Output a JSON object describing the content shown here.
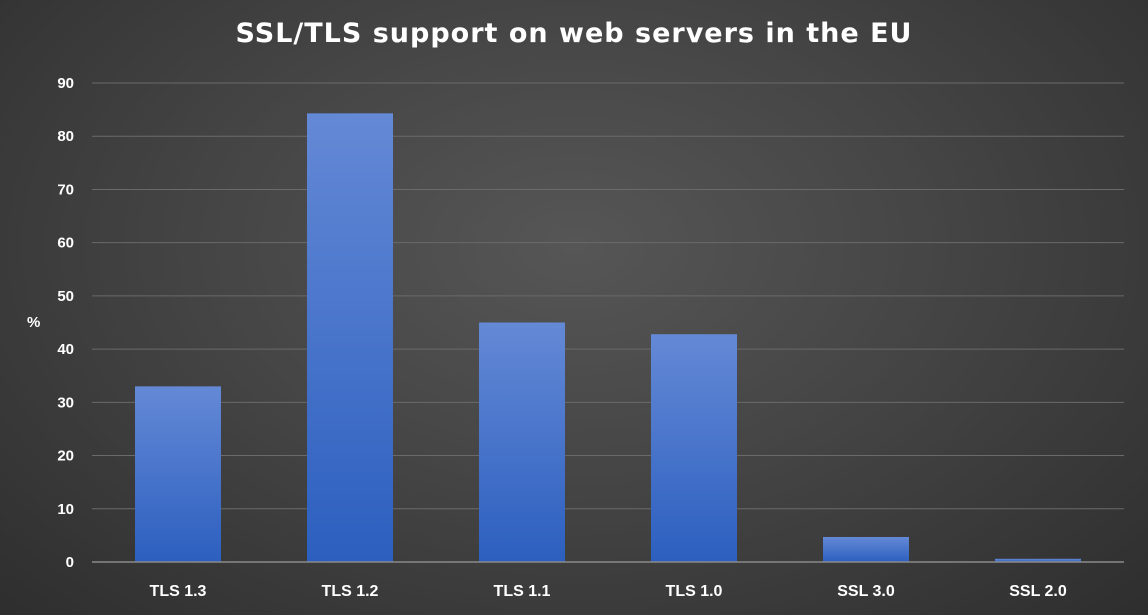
{
  "chart_data": {
    "type": "bar",
    "title": "SSL/TLS support on web servers in the EU",
    "xlabel": "",
    "ylabel": "%",
    "categories": [
      "TLS 1.3",
      "TLS 1.2",
      "TLS 1.1",
      "TLS 1.0",
      "SSL 3.0",
      "SSL 2.0"
    ],
    "values": [
      33,
      84.3,
      45,
      42.8,
      4.7,
      0.6
    ],
    "ylim": [
      0,
      90
    ],
    "yticks": [
      0,
      10,
      20,
      30,
      40,
      50,
      60,
      70,
      80,
      90
    ],
    "grid": true,
    "legend": "none",
    "colors": {
      "bar_top": "#6489d6",
      "bar_bottom": "#2c5fbf",
      "grid": "#6a6a6a",
      "axis_line": "#8a8a8a",
      "text": "#ffffff"
    }
  }
}
